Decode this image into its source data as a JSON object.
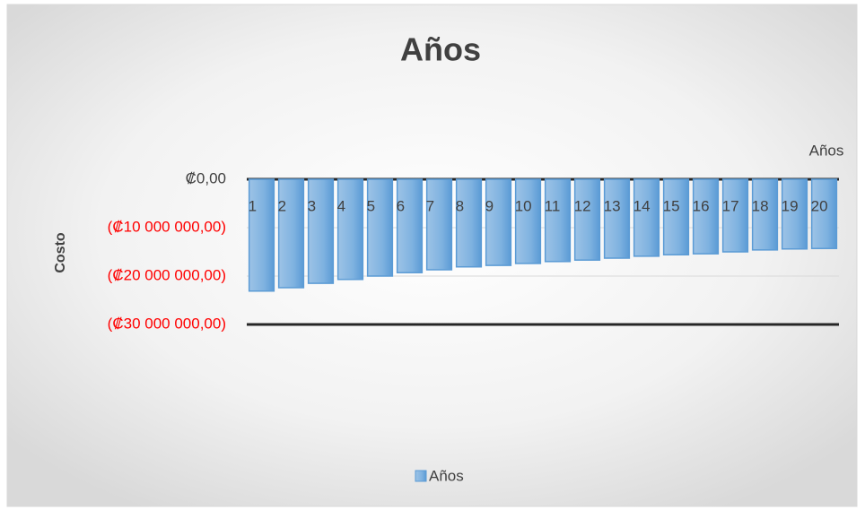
{
  "chart_data": {
    "type": "bar",
    "title": "Años",
    "x_label": "Años",
    "y_label": "Costo",
    "categories": [
      "1",
      "2",
      "3",
      "4",
      "5",
      "6",
      "7",
      "8",
      "9",
      "10",
      "11",
      "12",
      "13",
      "14",
      "15",
      "16",
      "17",
      "18",
      "19",
      "20"
    ],
    "series": [
      {
        "name": "Años",
        "color": "#5b9bd5",
        "values": [
          -23100000,
          -22400000,
          -21500000,
          -20700000,
          -20000000,
          -19300000,
          -18700000,
          -18100000,
          -17800000,
          -17400000,
          -17000000,
          -16700000,
          -16300000,
          -15900000,
          -15600000,
          -15400000,
          -15000000,
          -14600000,
          -14400000,
          -14300000
        ]
      }
    ],
    "ylim": [
      -30000000,
      0
    ],
    "yticks": [
      {
        "value": 0,
        "label": "₡0,00"
      },
      {
        "value": -10000000,
        "label": "(₡10 000 000,00)"
      },
      {
        "value": -20000000,
        "label": "(₡20 000 000,00)"
      },
      {
        "value": -30000000,
        "label": "(₡30 000 000,00)"
      }
    ],
    "negative_tick_color": "#ff0000",
    "grid": true,
    "legend": "bottom"
  }
}
